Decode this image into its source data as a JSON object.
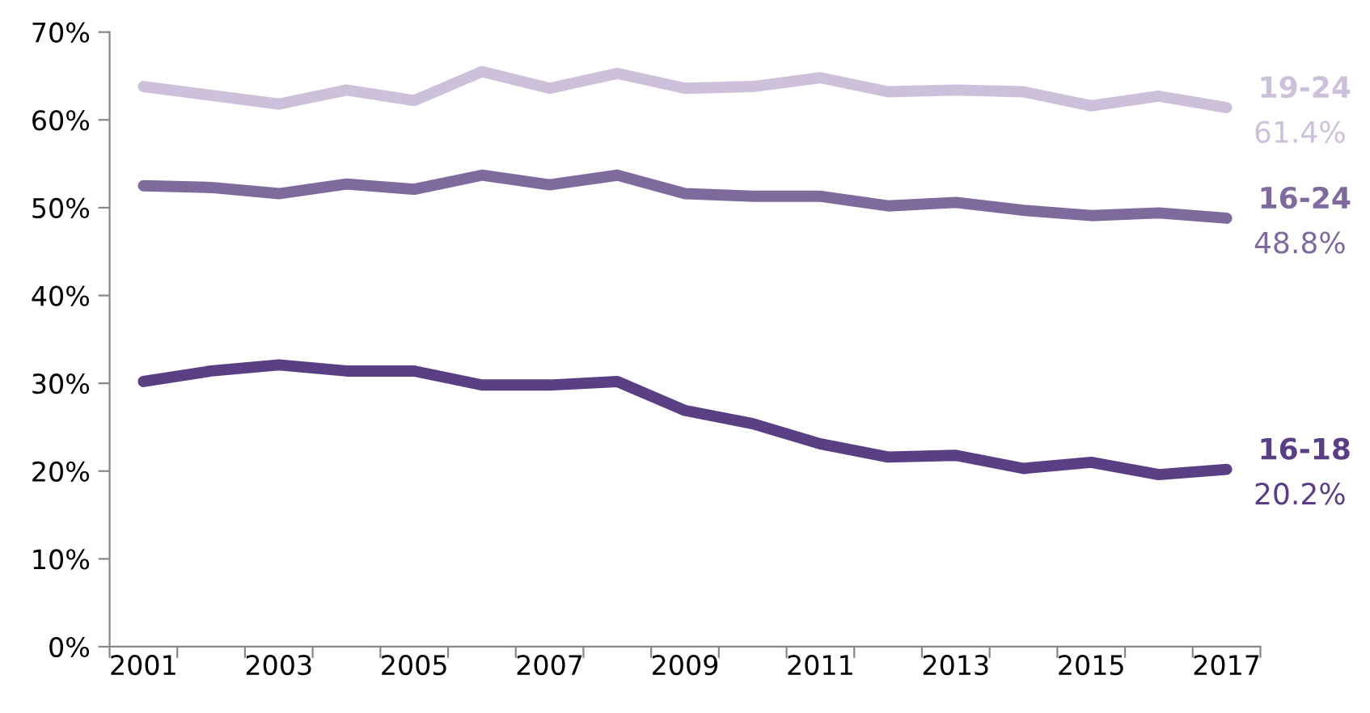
{
  "chart_data": {
    "type": "line",
    "categories": [
      "2001",
      null,
      "2003",
      null,
      "2005",
      null,
      "2007",
      null,
      "2009",
      null,
      "2011",
      null,
      "2013",
      null,
      "2015",
      null,
      "2017"
    ],
    "series": [
      {
        "name": "19-24",
        "color": "#ccc0da",
        "values": [
          63.8,
          62.8,
          61.8,
          63.4,
          62.2,
          65.5,
          63.6,
          65.3,
          63.6,
          63.8,
          64.8,
          63.2,
          63.4,
          63.2,
          61.6,
          62.7,
          61.4
        ],
        "value_labels": [
          null,
          null,
          null,
          null,
          null,
          null,
          null,
          null,
          null,
          null,
          null,
          null,
          null,
          null,
          null,
          null,
          "61.4%"
        ]
      },
      {
        "name": "16-24",
        "color": "#7f6a9e",
        "values": [
          52.5,
          52.3,
          51.6,
          52.7,
          52.1,
          53.7,
          52.6,
          53.7,
          51.6,
          51.3,
          51.3,
          50.2,
          50.6,
          49.7,
          49.1,
          49.4,
          48.8
        ],
        "value_labels": [
          null,
          null,
          null,
          null,
          null,
          null,
          null,
          null,
          null,
          null,
          null,
          null,
          null,
          null,
          null,
          null,
          "48.8%"
        ]
      },
      {
        "name": "16-18",
        "color": "#5b3f84",
        "values": [
          30.2,
          31.4,
          32.1,
          31.4,
          31.4,
          29.8,
          29.8,
          30.2,
          26.9,
          25.4,
          23.1,
          21.6,
          21.8,
          20.3,
          21.0,
          19.6,
          20.2
        ],
        "value_labels": [
          null,
          null,
          null,
          null,
          null,
          null,
          null,
          null,
          null,
          null,
          null,
          null,
          null,
          null,
          null,
          null,
          "20.2%"
        ]
      }
    ],
    "ylim": [
      0,
      70
    ],
    "yticks": [
      {
        "value": 0,
        "label": "0%"
      },
      {
        "value": 10,
        "label": "10%"
      },
      {
        "value": 20,
        "label": "20%"
      },
      {
        "value": 30,
        "label": "30%"
      },
      {
        "value": 40,
        "label": "40%"
      },
      {
        "value": 50,
        "label": "50%"
      },
      {
        "value": 60,
        "label": "60%"
      },
      {
        "value": 70,
        "label": "70%"
      }
    ],
    "grid": false,
    "legend": false,
    "marker": "none",
    "line_style": "solid"
  }
}
